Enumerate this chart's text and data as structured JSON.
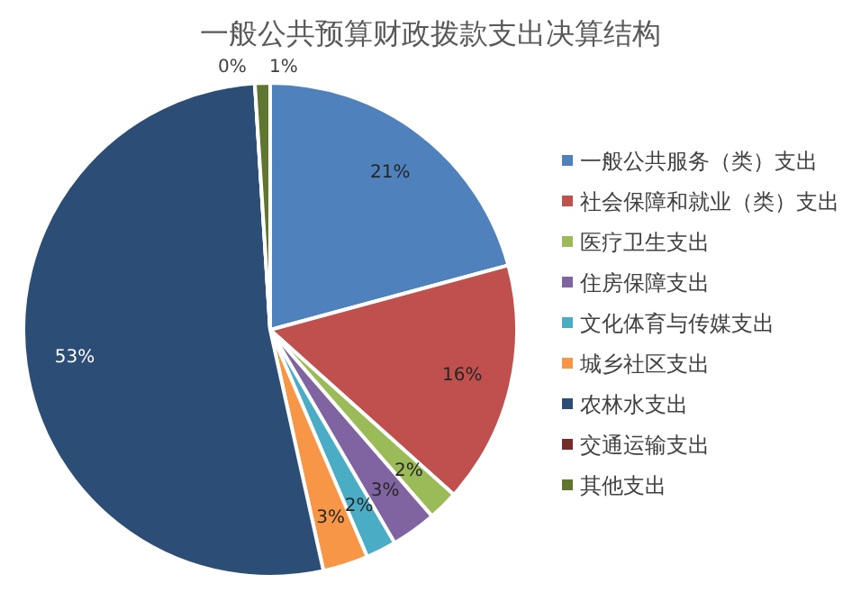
{
  "chart_data": {
    "type": "pie",
    "title": "一般公共预算财政拨款支出决算结构",
    "categories": [
      "一般公共服务（类）支出",
      "社会保障和就业（类）支出",
      "医疗卫生支出",
      "住房保障支出",
      "文化体育与传媒支出",
      "城乡社区支出",
      "农林水支出",
      "交通运输支出",
      "其他支出"
    ],
    "values": [
      21,
      16,
      2,
      3,
      2,
      3,
      53,
      0,
      1
    ],
    "colors": [
      "#4f81bd",
      "#c0504d",
      "#9bbb59",
      "#8064a2",
      "#4bacc6",
      "#f79646",
      "#2c4d75",
      "#772c2a",
      "#5f7530"
    ],
    "value_labels": [
      "21%",
      "16%",
      "2%",
      "3%",
      "2%",
      "3%",
      "53%",
      "0%",
      "1%"
    ],
    "legend": "right"
  }
}
